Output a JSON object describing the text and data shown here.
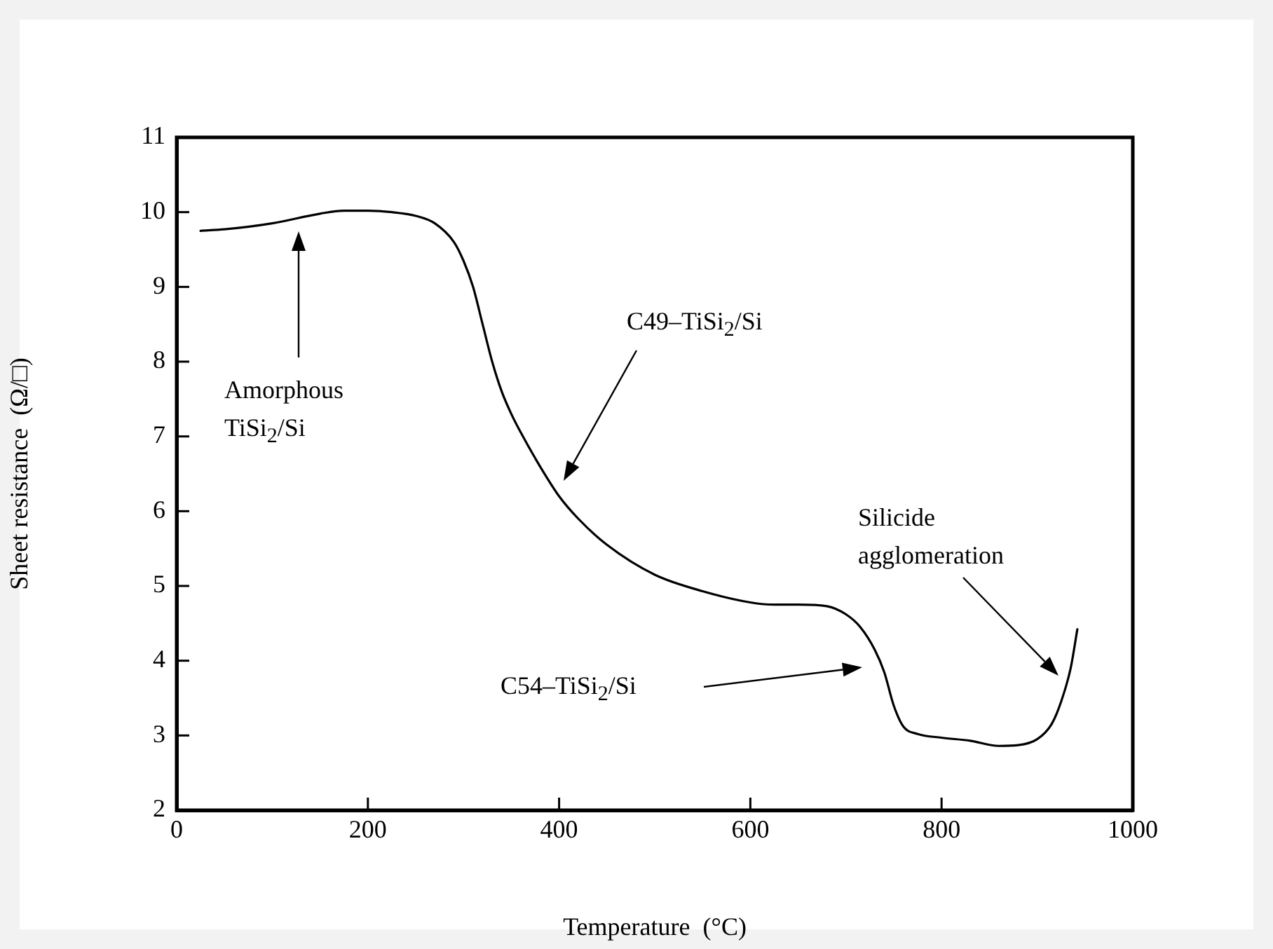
{
  "chart_data": {
    "type": "line",
    "xlabel": "Temperature  (°C)",
    "ylabel": "Sheet resistance  (Ω/□)",
    "xlim": [
      0,
      1000
    ],
    "xticks": [
      0,
      200,
      400,
      600,
      800,
      1000
    ],
    "ylim": [
      2,
      11
    ],
    "yticks": [
      2,
      3,
      4,
      5,
      6,
      7,
      8,
      9,
      10,
      11
    ],
    "grid": false,
    "legend": false,
    "marker": "none",
    "line_style": "solid",
    "series": [
      {
        "color": "#000000",
        "x": [
          25,
          50,
          100,
          150,
          175,
          200,
          225,
          250,
          270,
          290,
          300,
          310,
          320,
          330,
          340,
          350,
          360,
          380,
          400,
          420,
          450,
          500,
          550,
          600,
          625,
          650,
          680,
          700,
          715,
          730,
          740,
          750,
          760,
          775,
          800,
          830,
          860,
          880,
          900,
          915,
          925,
          935,
          942
        ],
        "values": [
          9.75,
          9.77,
          9.85,
          9.98,
          10.02,
          10.02,
          10,
          9.95,
          9.85,
          9.6,
          9.35,
          9,
          8.5,
          8,
          7.6,
          7.3,
          7.05,
          6.6,
          6.2,
          5.9,
          5.55,
          5.15,
          4.93,
          4.78,
          4.75,
          4.75,
          4.73,
          4.62,
          4.45,
          4.15,
          3.85,
          3.4,
          3.12,
          3.02,
          2.97,
          2.93,
          2.86,
          2.87,
          2.95,
          3.15,
          3.45,
          3.9,
          4.42
        ]
      }
    ],
    "annotations": [
      "Amorphous\nTiSi$_{2}$/Si",
      "C49–TiSi$_{2}$/Si",
      "C54–TiSi$_{2}$/Si",
      "Silicide\nagglomeration"
    ]
  }
}
